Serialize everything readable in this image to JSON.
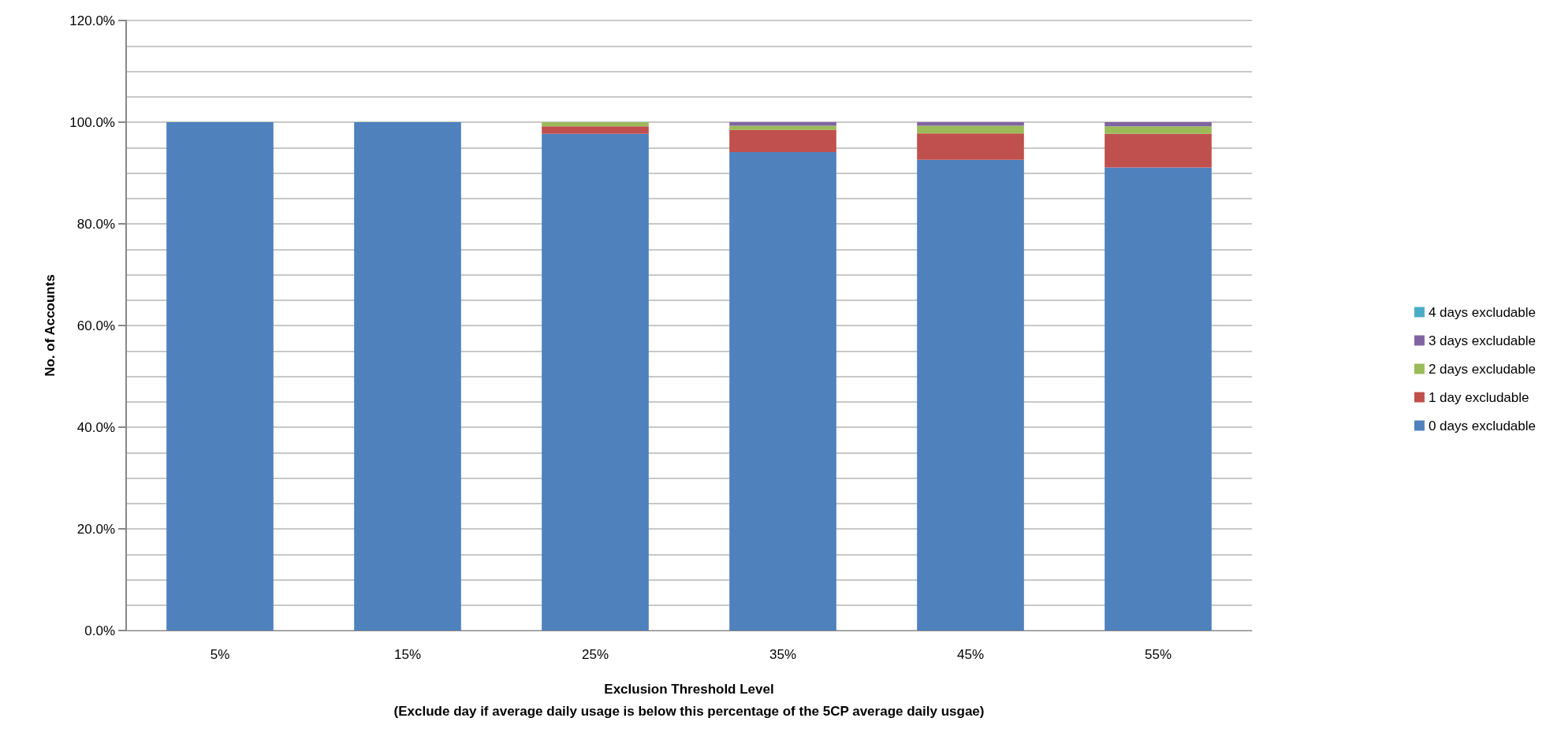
{
  "chart_data": {
    "type": "bar",
    "stacked": true,
    "xlabel": "Exclusion Threshold Level\n(Exclude day if average daily usage is below this percentage of the 5CP average daily usgae)",
    "ylabel": "No. of Accounts",
    "categories": [
      "5%",
      "15%",
      "25%",
      "35%",
      "45%",
      "55%"
    ],
    "series": [
      {
        "name": "0 days excludable",
        "color": "#4f81bd",
        "values": [
          100,
          100,
          97.7,
          94.1,
          92.6,
          91.1
        ]
      },
      {
        "name": "1 day excludable",
        "color": "#c0504d",
        "values": [
          0,
          0,
          1.5,
          4.4,
          5.2,
          6.6
        ]
      },
      {
        "name": "2 days excludable",
        "color": "#9bbb59",
        "values": [
          0,
          0,
          0.8,
          0.8,
          1.5,
          1.5
        ]
      },
      {
        "name": "3 days excludable",
        "color": "#8064a2",
        "values": [
          0,
          0,
          0,
          0.7,
          0.7,
          0.8
        ]
      },
      {
        "name": "4 days excludable",
        "color": "#4bacc6",
        "values": [
          0,
          0,
          0,
          0,
          0,
          0
        ]
      }
    ],
    "ylim": [
      0,
      120
    ],
    "yticks": [
      {
        "value": 0,
        "label": "0.0%"
      },
      {
        "value": 5,
        "label": null
      },
      {
        "value": 10,
        "label": null
      },
      {
        "value": 15,
        "label": null
      },
      {
        "value": 20,
        "label": "20.0%"
      },
      {
        "value": 25,
        "label": null
      },
      {
        "value": 30,
        "label": null
      },
      {
        "value": 35,
        "label": null
      },
      {
        "value": 40,
        "label": "40.0%"
      },
      {
        "value": 45,
        "label": null
      },
      {
        "value": 50,
        "label": null
      },
      {
        "value": 55,
        "label": null
      },
      {
        "value": 60,
        "label": "60.0%"
      },
      {
        "value": 65,
        "label": null
      },
      {
        "value": 70,
        "label": null
      },
      {
        "value": 75,
        "label": null
      },
      {
        "value": 80,
        "label": "80.0%"
      },
      {
        "value": 85,
        "label": null
      },
      {
        "value": 90,
        "label": null
      },
      {
        "value": 95,
        "label": null
      },
      {
        "value": 100,
        "label": "100.0%"
      },
      {
        "value": 105,
        "label": null
      },
      {
        "value": 110,
        "label": null
      },
      {
        "value": 115,
        "label": null
      },
      {
        "value": 120,
        "label": "120.0%"
      }
    ],
    "grid": "y",
    "legend": "right"
  }
}
